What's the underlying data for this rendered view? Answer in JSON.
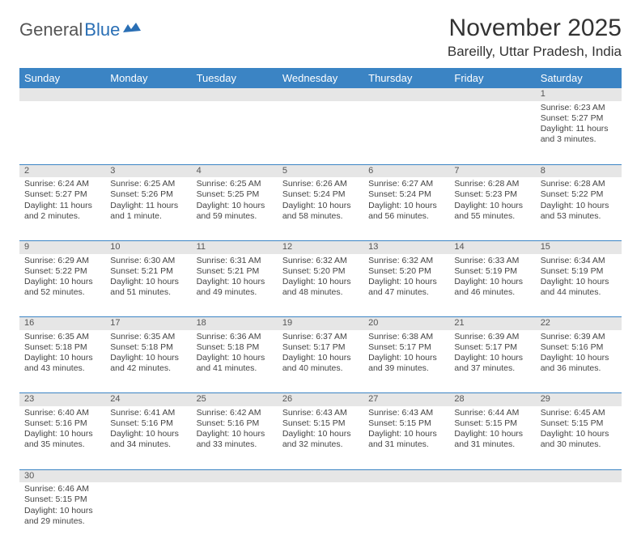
{
  "logo": {
    "text1": "General",
    "text2": "Blue"
  },
  "title": "November 2025",
  "location": "Bareilly, Uttar Pradesh, India",
  "header_bg": "#3b84c4",
  "daynum_bg": "#e6e6e6",
  "days": [
    "Sunday",
    "Monday",
    "Tuesday",
    "Wednesday",
    "Thursday",
    "Friday",
    "Saturday"
  ],
  "weeks": [
    [
      null,
      null,
      null,
      null,
      null,
      null,
      {
        "n": "1",
        "sr": "Sunrise: 6:23 AM",
        "ss": "Sunset: 5:27 PM",
        "dl": "Daylight: 11 hours and 3 minutes."
      }
    ],
    [
      {
        "n": "2",
        "sr": "Sunrise: 6:24 AM",
        "ss": "Sunset: 5:27 PM",
        "dl": "Daylight: 11 hours and 2 minutes."
      },
      {
        "n": "3",
        "sr": "Sunrise: 6:25 AM",
        "ss": "Sunset: 5:26 PM",
        "dl": "Daylight: 11 hours and 1 minute."
      },
      {
        "n": "4",
        "sr": "Sunrise: 6:25 AM",
        "ss": "Sunset: 5:25 PM",
        "dl": "Daylight: 10 hours and 59 minutes."
      },
      {
        "n": "5",
        "sr": "Sunrise: 6:26 AM",
        "ss": "Sunset: 5:24 PM",
        "dl": "Daylight: 10 hours and 58 minutes."
      },
      {
        "n": "6",
        "sr": "Sunrise: 6:27 AM",
        "ss": "Sunset: 5:24 PM",
        "dl": "Daylight: 10 hours and 56 minutes."
      },
      {
        "n": "7",
        "sr": "Sunrise: 6:28 AM",
        "ss": "Sunset: 5:23 PM",
        "dl": "Daylight: 10 hours and 55 minutes."
      },
      {
        "n": "8",
        "sr": "Sunrise: 6:28 AM",
        "ss": "Sunset: 5:22 PM",
        "dl": "Daylight: 10 hours and 53 minutes."
      }
    ],
    [
      {
        "n": "9",
        "sr": "Sunrise: 6:29 AM",
        "ss": "Sunset: 5:22 PM",
        "dl": "Daylight: 10 hours and 52 minutes."
      },
      {
        "n": "10",
        "sr": "Sunrise: 6:30 AM",
        "ss": "Sunset: 5:21 PM",
        "dl": "Daylight: 10 hours and 51 minutes."
      },
      {
        "n": "11",
        "sr": "Sunrise: 6:31 AM",
        "ss": "Sunset: 5:21 PM",
        "dl": "Daylight: 10 hours and 49 minutes."
      },
      {
        "n": "12",
        "sr": "Sunrise: 6:32 AM",
        "ss": "Sunset: 5:20 PM",
        "dl": "Daylight: 10 hours and 48 minutes."
      },
      {
        "n": "13",
        "sr": "Sunrise: 6:32 AM",
        "ss": "Sunset: 5:20 PM",
        "dl": "Daylight: 10 hours and 47 minutes."
      },
      {
        "n": "14",
        "sr": "Sunrise: 6:33 AM",
        "ss": "Sunset: 5:19 PM",
        "dl": "Daylight: 10 hours and 46 minutes."
      },
      {
        "n": "15",
        "sr": "Sunrise: 6:34 AM",
        "ss": "Sunset: 5:19 PM",
        "dl": "Daylight: 10 hours and 44 minutes."
      }
    ],
    [
      {
        "n": "16",
        "sr": "Sunrise: 6:35 AM",
        "ss": "Sunset: 5:18 PM",
        "dl": "Daylight: 10 hours and 43 minutes."
      },
      {
        "n": "17",
        "sr": "Sunrise: 6:35 AM",
        "ss": "Sunset: 5:18 PM",
        "dl": "Daylight: 10 hours and 42 minutes."
      },
      {
        "n": "18",
        "sr": "Sunrise: 6:36 AM",
        "ss": "Sunset: 5:18 PM",
        "dl": "Daylight: 10 hours and 41 minutes."
      },
      {
        "n": "19",
        "sr": "Sunrise: 6:37 AM",
        "ss": "Sunset: 5:17 PM",
        "dl": "Daylight: 10 hours and 40 minutes."
      },
      {
        "n": "20",
        "sr": "Sunrise: 6:38 AM",
        "ss": "Sunset: 5:17 PM",
        "dl": "Daylight: 10 hours and 39 minutes."
      },
      {
        "n": "21",
        "sr": "Sunrise: 6:39 AM",
        "ss": "Sunset: 5:17 PM",
        "dl": "Daylight: 10 hours and 37 minutes."
      },
      {
        "n": "22",
        "sr": "Sunrise: 6:39 AM",
        "ss": "Sunset: 5:16 PM",
        "dl": "Daylight: 10 hours and 36 minutes."
      }
    ],
    [
      {
        "n": "23",
        "sr": "Sunrise: 6:40 AM",
        "ss": "Sunset: 5:16 PM",
        "dl": "Daylight: 10 hours and 35 minutes."
      },
      {
        "n": "24",
        "sr": "Sunrise: 6:41 AM",
        "ss": "Sunset: 5:16 PM",
        "dl": "Daylight: 10 hours and 34 minutes."
      },
      {
        "n": "25",
        "sr": "Sunrise: 6:42 AM",
        "ss": "Sunset: 5:16 PM",
        "dl": "Daylight: 10 hours and 33 minutes."
      },
      {
        "n": "26",
        "sr": "Sunrise: 6:43 AM",
        "ss": "Sunset: 5:15 PM",
        "dl": "Daylight: 10 hours and 32 minutes."
      },
      {
        "n": "27",
        "sr": "Sunrise: 6:43 AM",
        "ss": "Sunset: 5:15 PM",
        "dl": "Daylight: 10 hours and 31 minutes."
      },
      {
        "n": "28",
        "sr": "Sunrise: 6:44 AM",
        "ss": "Sunset: 5:15 PM",
        "dl": "Daylight: 10 hours and 31 minutes."
      },
      {
        "n": "29",
        "sr": "Sunrise: 6:45 AM",
        "ss": "Sunset: 5:15 PM",
        "dl": "Daylight: 10 hours and 30 minutes."
      }
    ],
    [
      {
        "n": "30",
        "sr": "Sunrise: 6:46 AM",
        "ss": "Sunset: 5:15 PM",
        "dl": "Daylight: 10 hours and 29 minutes."
      },
      null,
      null,
      null,
      null,
      null,
      null
    ]
  ]
}
